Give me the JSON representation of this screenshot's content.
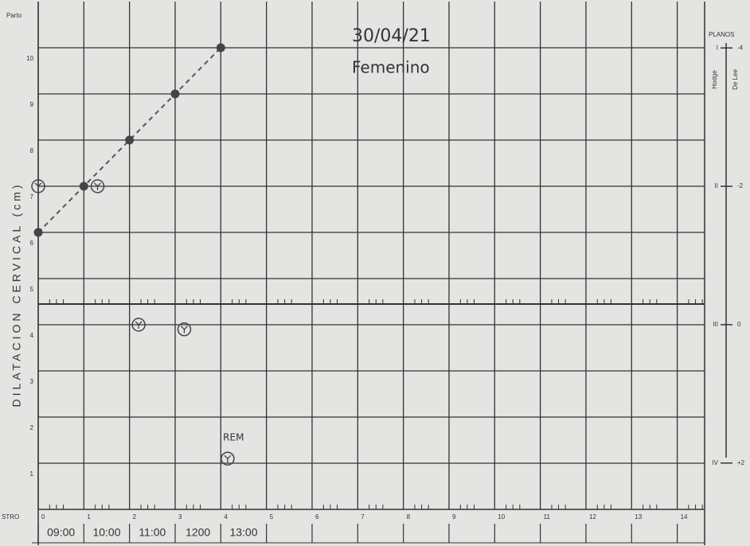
{
  "chart_data": {
    "type": "line",
    "y_label": "DILATACION CERVICAL (cm)",
    "top_label": "Parto",
    "registro_label": "STRO",
    "xlim": [
      0,
      14.6
    ],
    "xticks": [
      0,
      1,
      2,
      3,
      4,
      5,
      6,
      7,
      8,
      9,
      10,
      11,
      12,
      13,
      14
    ],
    "ylim": [
      0,
      11
    ],
    "yticks": [
      1,
      2,
      3,
      4,
      5,
      6,
      7,
      8,
      9,
      10
    ],
    "y2_title": "PLANOS",
    "y2_sublabels": [
      "Hodge",
      "De Lee"
    ],
    "y2lim": [
      2.67,
      -4.67
    ],
    "y2ticks": [
      -4,
      -2,
      0,
      {
        "value": 2,
        "label": "+2"
      }
    ],
    "y2tick_names": [
      "I",
      "II",
      "III",
      "IV"
    ],
    "time_labels": [
      "09:00",
      "10:00",
      "11:00",
      "1200",
      "13:00"
    ],
    "annotations": [
      "30/04/21",
      "Femenino",
      "REM"
    ],
    "grid": true,
    "series": [
      {
        "type": "line",
        "color": "#555555",
        "dashed": true,
        "x": [
          0,
          1,
          2,
          3,
          4
        ],
        "values": [
          6,
          7,
          8,
          9,
          10
        ]
      },
      {
        "type": "scatter",
        "color": "#444444",
        "x": [
          0,
          1.3,
          2.2,
          3.2,
          4.15
        ],
        "values": [
          7,
          7,
          4,
          3.9,
          1.1
        ]
      }
    ]
  }
}
